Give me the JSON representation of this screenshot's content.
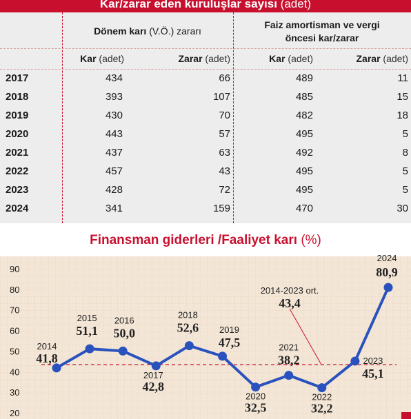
{
  "table": {
    "title": "Kar/zarar eden kuruluşlar sayısı",
    "title_unit": "(adet)",
    "group1": {
      "label": "Dönem karı",
      "label_light": "(V.Ö.) zararı"
    },
    "group2": {
      "line1": "Faiz amortisman ve vergi",
      "line2": "öncesi kar/zarar"
    },
    "columns": [
      {
        "label": "Kar",
        "unit": "(adet)"
      },
      {
        "label": "Zarar",
        "unit": "(adet)"
      },
      {
        "label": "Kar",
        "unit": "(adet)"
      },
      {
        "label": "Zarar",
        "unit": "(adet)"
      }
    ],
    "rows": [
      {
        "year": "2017",
        "values": [
          "434",
          "66",
          "489",
          "11"
        ]
      },
      {
        "year": "2018",
        "values": [
          "393",
          "107",
          "485",
          "15"
        ]
      },
      {
        "year": "2019",
        "values": [
          "430",
          "70",
          "482",
          "18"
        ]
      },
      {
        "year": "2020",
        "values": [
          "443",
          "57",
          "495",
          "5"
        ]
      },
      {
        "year": "2021",
        "values": [
          "437",
          "63",
          "492",
          "8"
        ]
      },
      {
        "year": "2022",
        "values": [
          "457",
          "43",
          "495",
          "5"
        ]
      },
      {
        "year": "2023",
        "values": [
          "428",
          "72",
          "495",
          "5"
        ]
      },
      {
        "year": "2024",
        "values": [
          "341",
          "159",
          "470",
          "30"
        ]
      }
    ]
  },
  "chart_data": {
    "type": "line",
    "title": "Finansman giderleri /Faaliyet karı",
    "title_unit": "(%)",
    "x": [
      "2014",
      "2015",
      "2016",
      "2017",
      "2018",
      "2019",
      "2020",
      "2021",
      "2022",
      "2023",
      "2024"
    ],
    "values": [
      41.8,
      51.1,
      50.0,
      42.8,
      52.6,
      47.5,
      32.5,
      38.2,
      32.2,
      45.1,
      80.9
    ],
    "value_labels": [
      "41,8",
      "51,1",
      "50,0",
      "42,8",
      "52,6",
      "47,5",
      "32,5",
      "38,2",
      "32,2",
      "45,1",
      "80,9"
    ],
    "y_ticks": [
      20,
      30,
      40,
      50,
      60,
      70,
      80,
      90
    ],
    "ylim": [
      17,
      96
    ],
    "reference": {
      "label": "2014-2023 ort.",
      "value": 43.4,
      "value_label": "43,4"
    },
    "grid": "dashed-grid-background",
    "colors": {
      "line": "#2a52be",
      "marker": "#2a52be",
      "reference": "#c8102e",
      "accent": "#c8102e",
      "background": "#f3e6d6"
    }
  }
}
